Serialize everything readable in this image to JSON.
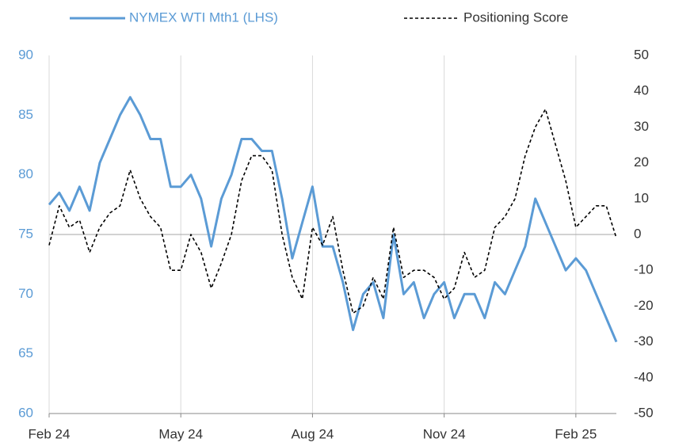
{
  "chart_data": {
    "type": "line",
    "categories": [
      "Feb 24",
      null,
      null,
      null,
      null,
      null,
      null,
      null,
      null,
      null,
      null,
      null,
      null,
      "May 24",
      null,
      null,
      null,
      null,
      null,
      null,
      null,
      null,
      null,
      null,
      null,
      null,
      "Aug 24",
      null,
      null,
      null,
      null,
      null,
      null,
      null,
      null,
      null,
      null,
      null,
      null,
      "Nov 24",
      null,
      null,
      null,
      null,
      null,
      null,
      null,
      null,
      null,
      null,
      null,
      null,
      "Feb 25",
      null,
      null,
      null,
      null
    ],
    "series": [
      {
        "name": "NYMEX WTI Mth1 (LHS)",
        "color": "#5b9bd5",
        "style": "solid",
        "axis": "y",
        "values": [
          77.5,
          78.5,
          77,
          79,
          77,
          81,
          83,
          85,
          86.5,
          85,
          83,
          83,
          79,
          79,
          80,
          78,
          74,
          78,
          80,
          83,
          83,
          82,
          82,
          78,
          73,
          76,
          79,
          74,
          74,
          71,
          67,
          70,
          71,
          68,
          75,
          70,
          71,
          68,
          70,
          71,
          68,
          70,
          70,
          68,
          71,
          70,
          72,
          74,
          78,
          76,
          74,
          72,
          73,
          72,
          70,
          68,
          66
        ]
      },
      {
        "name": "Positioning Score",
        "color": "#000000",
        "style": "dashed",
        "axis": "y2",
        "values": [
          -3,
          8,
          2,
          4,
          -5,
          2,
          6,
          8,
          18,
          10,
          5,
          2,
          -10,
          -10,
          0,
          -5,
          -15,
          -8,
          0,
          15,
          22,
          22,
          18,
          0,
          -12,
          -18,
          2,
          -3,
          5,
          -10,
          -22,
          -20,
          -12,
          -18,
          2,
          -12,
          -10,
          -10,
          -12,
          -18,
          -15,
          -5,
          -12,
          -10,
          2,
          5,
          10,
          22,
          30,
          35,
          25,
          15,
          2,
          5,
          8,
          8,
          -1
        ]
      }
    ],
    "ylim": [
      60,
      90
    ],
    "yticks": [
      60,
      65,
      70,
      75,
      80,
      85,
      90
    ],
    "y2lim": [
      -50,
      50
    ],
    "y2ticks": [
      -50,
      -40,
      -30,
      -20,
      -10,
      0,
      10,
      20,
      30,
      40,
      50
    ],
    "ytick_color": "#5b9bd5",
    "y2tick_color": "#333333"
  }
}
